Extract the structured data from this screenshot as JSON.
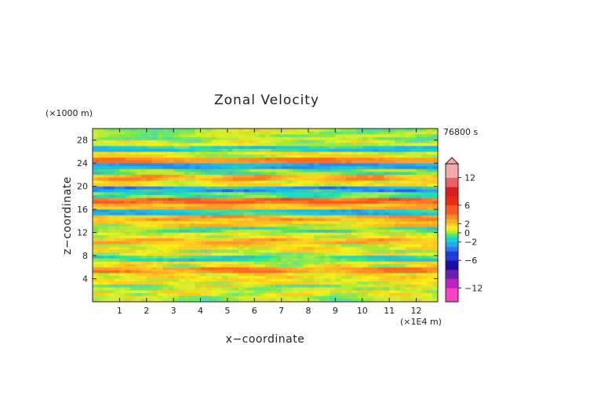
{
  "chart_data": {
    "type": "heatmap",
    "title": "Zonal Velocity",
    "xlabel": "x−coordinate",
    "ylabel": "z−coordinate",
    "x_unit": "(×1E4 m)",
    "y_unit": "(×1000 m)",
    "time_label": "76800 s",
    "xlim": [
      0,
      12.8
    ],
    "ylim": [
      0,
      30
    ],
    "x_ticks": [
      "1",
      "2",
      "3",
      "4",
      "5",
      "6",
      "7",
      "8",
      "9",
      "10",
      "11",
      "12"
    ],
    "y_ticks": [
      "4",
      "8",
      "12",
      "16",
      "20",
      "24",
      "28"
    ],
    "colorbar": {
      "tick_labels": [
        "12",
        "6",
        "2",
        "0",
        "−2",
        "−6",
        "−12"
      ],
      "tick_values": [
        12,
        6,
        2,
        0,
        -2,
        -6,
        -12
      ],
      "levels": [
        {
          "lo": -15,
          "hi": -12,
          "color": "#ff3ec8"
        },
        {
          "lo": -12,
          "hi": -10,
          "color": "#c020c0"
        },
        {
          "lo": -10,
          "hi": -8,
          "color": "#6a1fb0"
        },
        {
          "lo": -8,
          "hi": -6,
          "color": "#1a10a8"
        },
        {
          "lo": -6,
          "hi": -4,
          "color": "#1e3cd8"
        },
        {
          "lo": -4,
          "hi": -3,
          "color": "#2a78f0"
        },
        {
          "lo": -3,
          "hi": -2,
          "color": "#22a8f0"
        },
        {
          "lo": -2,
          "hi": -1,
          "color": "#18d0d8"
        },
        {
          "lo": -1,
          "hi": -0.5,
          "color": "#30e890"
        },
        {
          "lo": -0.5,
          "hi": 0,
          "color": "#7fe040"
        },
        {
          "lo": 0,
          "hi": 0.5,
          "color": "#b0ee3a"
        },
        {
          "lo": 0.5,
          "hi": 1,
          "color": "#e8f020"
        },
        {
          "lo": 1,
          "hi": 1.5,
          "color": "#ffec1a"
        },
        {
          "lo": 1.5,
          "hi": 2,
          "color": "#ffd21a"
        },
        {
          "lo": 2,
          "hi": 3,
          "color": "#ffb02a"
        },
        {
          "lo": 3,
          "hi": 4,
          "color": "#ff8a28"
        },
        {
          "lo": 4,
          "hi": 6,
          "color": "#ff5a1e"
        },
        {
          "lo": 6,
          "hi": 8,
          "color": "#f02818"
        },
        {
          "lo": 8,
          "hi": 10,
          "color": "#d81e1e"
        },
        {
          "lo": 10,
          "hi": 12,
          "color": "#ee6060"
        },
        {
          "lo": 12,
          "hi": 15,
          "color": "#f7a8a8"
        }
      ]
    },
    "bands": [
      {
        "z": 1.0,
        "v": 0.3
      },
      {
        "z": 2.0,
        "v": 0.9
      },
      {
        "z": 3.0,
        "v": 0.4
      },
      {
        "z": 4.0,
        "v": 1.1
      },
      {
        "z": 5.0,
        "v": 1.4
      },
      {
        "z": 6.0,
        "v": 3.0
      },
      {
        "z": 7.0,
        "v": 0.8
      },
      {
        "z": 8.0,
        "v": -1.0
      },
      {
        "z": 9.0,
        "v": 0.6
      },
      {
        "z": 10.0,
        "v": 1.3
      },
      {
        "z": 11.0,
        "v": 2.2
      },
      {
        "z": 12.0,
        "v": 0.7
      },
      {
        "z": 13.0,
        "v": -0.5
      },
      {
        "z": 14.0,
        "v": 1.5
      },
      {
        "z": 15.0,
        "v": 2.6
      },
      {
        "z": 16.0,
        "v": -1.6
      },
      {
        "z": 17.0,
        "v": 2.2
      },
      {
        "z": 18.0,
        "v": 4.2
      },
      {
        "z": 19.0,
        "v": -0.6
      },
      {
        "z": 20.0,
        "v": -2.2
      },
      {
        "z": 21.0,
        "v": 1.3
      },
      {
        "z": 22.0,
        "v": 2.8
      },
      {
        "z": 23.0,
        "v": -0.4
      },
      {
        "z": 24.0,
        "v": -2.4
      },
      {
        "z": 25.0,
        "v": 3.4
      },
      {
        "z": 26.0,
        "v": 0.9
      },
      {
        "z": 27.0,
        "v": -1.2
      },
      {
        "z": 28.0,
        "v": 0.5
      },
      {
        "z": 29.0,
        "v": 0.2
      },
      {
        "z": 30.0,
        "v": 0.4
      }
    ]
  }
}
